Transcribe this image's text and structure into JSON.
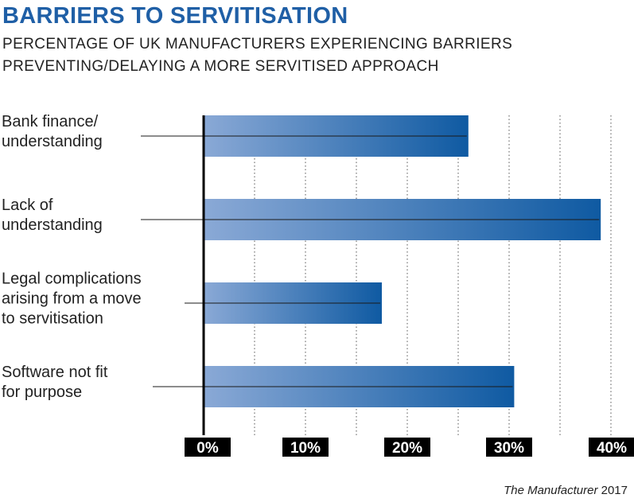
{
  "header": {
    "title": "BARRIERS TO SERVITISATION",
    "subtitle_line1": "PERCENTAGE OF UK MANUFACTURERS EXPERIENCING BARRIERS",
    "subtitle_line2": "PREVENTING/DELAYING A MORE SERVITISED APPROACH"
  },
  "footer": {
    "source_name": "The Manufacturer",
    "source_year": "2017"
  },
  "chart_data": {
    "type": "bar",
    "orientation": "horizontal",
    "title": "BARRIERS TO SERVITISATION",
    "subtitle": "PERCENTAGE OF UK MANUFACTURERS EXPERIENCING BARRIERS PREVENTING/DELAYING A MORE SERVITISED APPROACH",
    "categories": [
      [
        "Bank finance/",
        "understanding"
      ],
      [
        "Lack of",
        "understanding"
      ],
      [
        "Legal complications",
        "arising from a move",
        "to servitisation"
      ],
      [
        "Software not fit",
        "for purpose"
      ]
    ],
    "values": [
      26,
      39,
      17.5,
      30.5
    ],
    "xlim": [
      0,
      40
    ],
    "xticks": [
      0,
      10,
      20,
      30,
      40
    ],
    "xtick_labels": [
      "0%",
      "10%",
      "20%",
      "30%",
      "40%"
    ],
    "grid": true,
    "colors": {
      "bar_start": "#8aa9d6",
      "bar_end": "#0f5aa2",
      "title": "#1f5fa6",
      "axis": "#000000"
    }
  }
}
